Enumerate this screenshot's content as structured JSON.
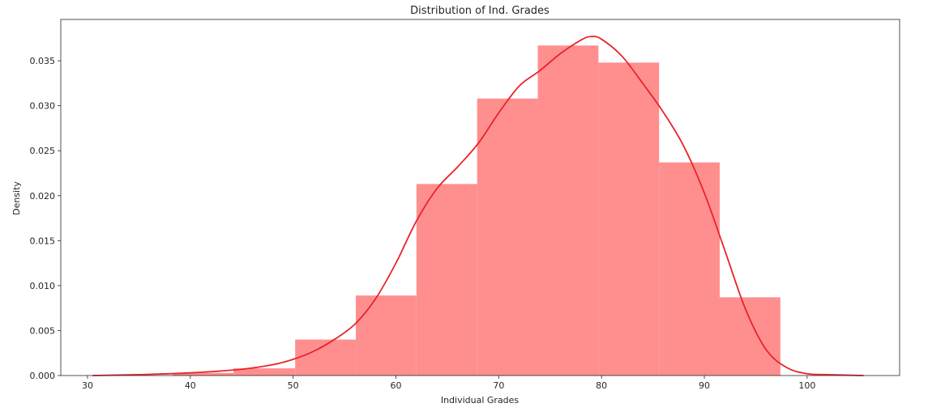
{
  "chart_data": {
    "type": "bar",
    "title": "Distribution of Ind. Grades",
    "xlabel": "Individual Grades",
    "ylabel": "Density",
    "xlim": [
      27.4,
      109.0
    ],
    "ylim": [
      0.0,
      0.0396
    ],
    "xticks": [
      30,
      40,
      50,
      60,
      70,
      80,
      90,
      100
    ],
    "xtick_labels": [
      "30",
      "40",
      "50",
      "60",
      "70",
      "80",
      "90",
      "100"
    ],
    "yticks": [
      0.0,
      0.005,
      0.01,
      0.015,
      0.02,
      0.025,
      0.03,
      0.035
    ],
    "ytick_labels": [
      "0.000",
      "0.005",
      "0.010",
      "0.015",
      "0.020",
      "0.025",
      "0.030",
      "0.035"
    ],
    "grid": false,
    "colors": {
      "bars": "#ff8f8f",
      "kde": "#e8242a",
      "axis": "#262626"
    },
    "histogram": {
      "bins": [
        {
          "x0": 38.3,
          "x1": 44.2,
          "density": 0.0003
        },
        {
          "x0": 44.2,
          "x1": 50.2,
          "density": 0.0008
        },
        {
          "x0": 50.2,
          "x1": 56.1,
          "density": 0.004
        },
        {
          "x0": 56.1,
          "x1": 62.0,
          "density": 0.0089
        },
        {
          "x0": 62.0,
          "x1": 67.9,
          "density": 0.0213
        },
        {
          "x0": 67.9,
          "x1": 73.8,
          "density": 0.0308
        },
        {
          "x0": 73.8,
          "x1": 79.7,
          "density": 0.0367
        },
        {
          "x0": 79.7,
          "x1": 85.6,
          "density": 0.0348
        },
        {
          "x0": 85.6,
          "x1": 91.5,
          "density": 0.0237
        },
        {
          "x0": 91.5,
          "x1": 97.4,
          "density": 0.0087
        }
      ]
    },
    "kde": {
      "x": [
        30.5,
        35,
        40,
        45,
        48,
        50,
        52,
        54,
        56,
        58,
        60,
        62,
        64,
        66,
        68,
        70,
        72,
        74,
        76,
        78,
        79,
        80,
        82,
        84,
        86,
        88,
        90,
        92,
        94,
        96,
        98,
        100,
        102,
        105.5
      ],
      "y": [
        0.0,
        0.0001,
        0.0003,
        0.0007,
        0.0012,
        0.0018,
        0.0027,
        0.004,
        0.0057,
        0.0085,
        0.0125,
        0.0172,
        0.0208,
        0.0232,
        0.0258,
        0.0292,
        0.0322,
        0.0339,
        0.0358,
        0.0373,
        0.0377,
        0.0374,
        0.0355,
        0.0325,
        0.0293,
        0.0255,
        0.0203,
        0.0139,
        0.0074,
        0.0029,
        0.0009,
        0.0002,
        0.0001,
        0.0
      ]
    }
  }
}
